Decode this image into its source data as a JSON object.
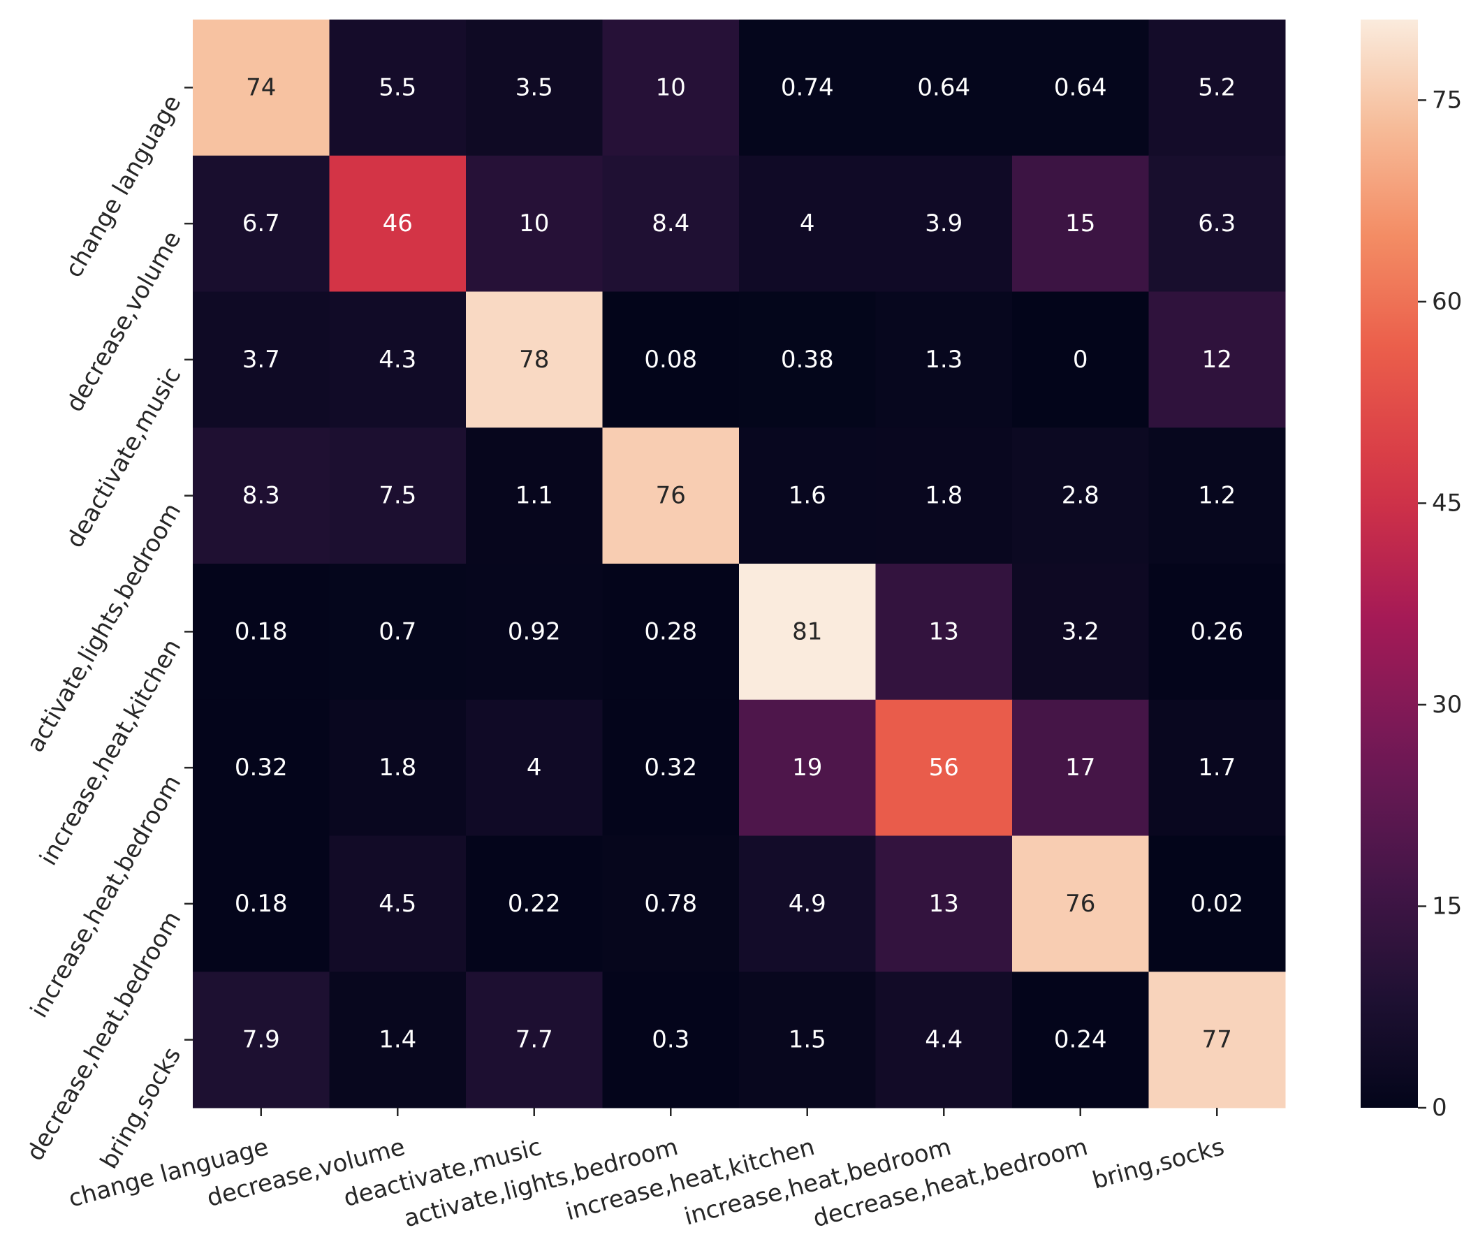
{
  "chart_data": {
    "type": "heatmap",
    "title": "",
    "xlabel": "",
    "ylabel": "",
    "rows": [
      "change language",
      "decrease,volume",
      "deactivate,music",
      "activate,lights,bedroom",
      "increase,heat,kitchen",
      "increase,heat,bedroom",
      "decrease,heat,bedroom",
      "bring,socks"
    ],
    "columns": [
      "change language",
      "decrease,volume",
      "deactivate,music",
      "activate,lights,bedroom",
      "increase,heat,kitchen",
      "increase,heat,bedroom",
      "decrease,heat,bedroom",
      "bring,socks"
    ],
    "values": [
      [
        74,
        5.5,
        3.5,
        10,
        0.74,
        0.64,
        0.64,
        5.2
      ],
      [
        6.7,
        46,
        10,
        8.4,
        4,
        3.9,
        15,
        6.3
      ],
      [
        3.7,
        4.3,
        78,
        0.08,
        0.38,
        1.3,
        0,
        12
      ],
      [
        8.3,
        7.5,
        1.1,
        76,
        1.6,
        1.8,
        2.8,
        1.2
      ],
      [
        0.18,
        0.7,
        0.92,
        0.28,
        81,
        13,
        3.2,
        0.26
      ],
      [
        0.32,
        1.8,
        4,
        0.32,
        19,
        56,
        17,
        1.7
      ],
      [
        0.18,
        4.5,
        0.22,
        0.78,
        4.9,
        13,
        76,
        0.02
      ],
      [
        7.9,
        1.4,
        7.7,
        0.3,
        1.5,
        4.4,
        0.24,
        77
      ]
    ],
    "colorbar": {
      "min": 0,
      "max": 81,
      "ticks": [
        0,
        15,
        30,
        45,
        60,
        75
      ],
      "colormap": "rocket"
    }
  }
}
